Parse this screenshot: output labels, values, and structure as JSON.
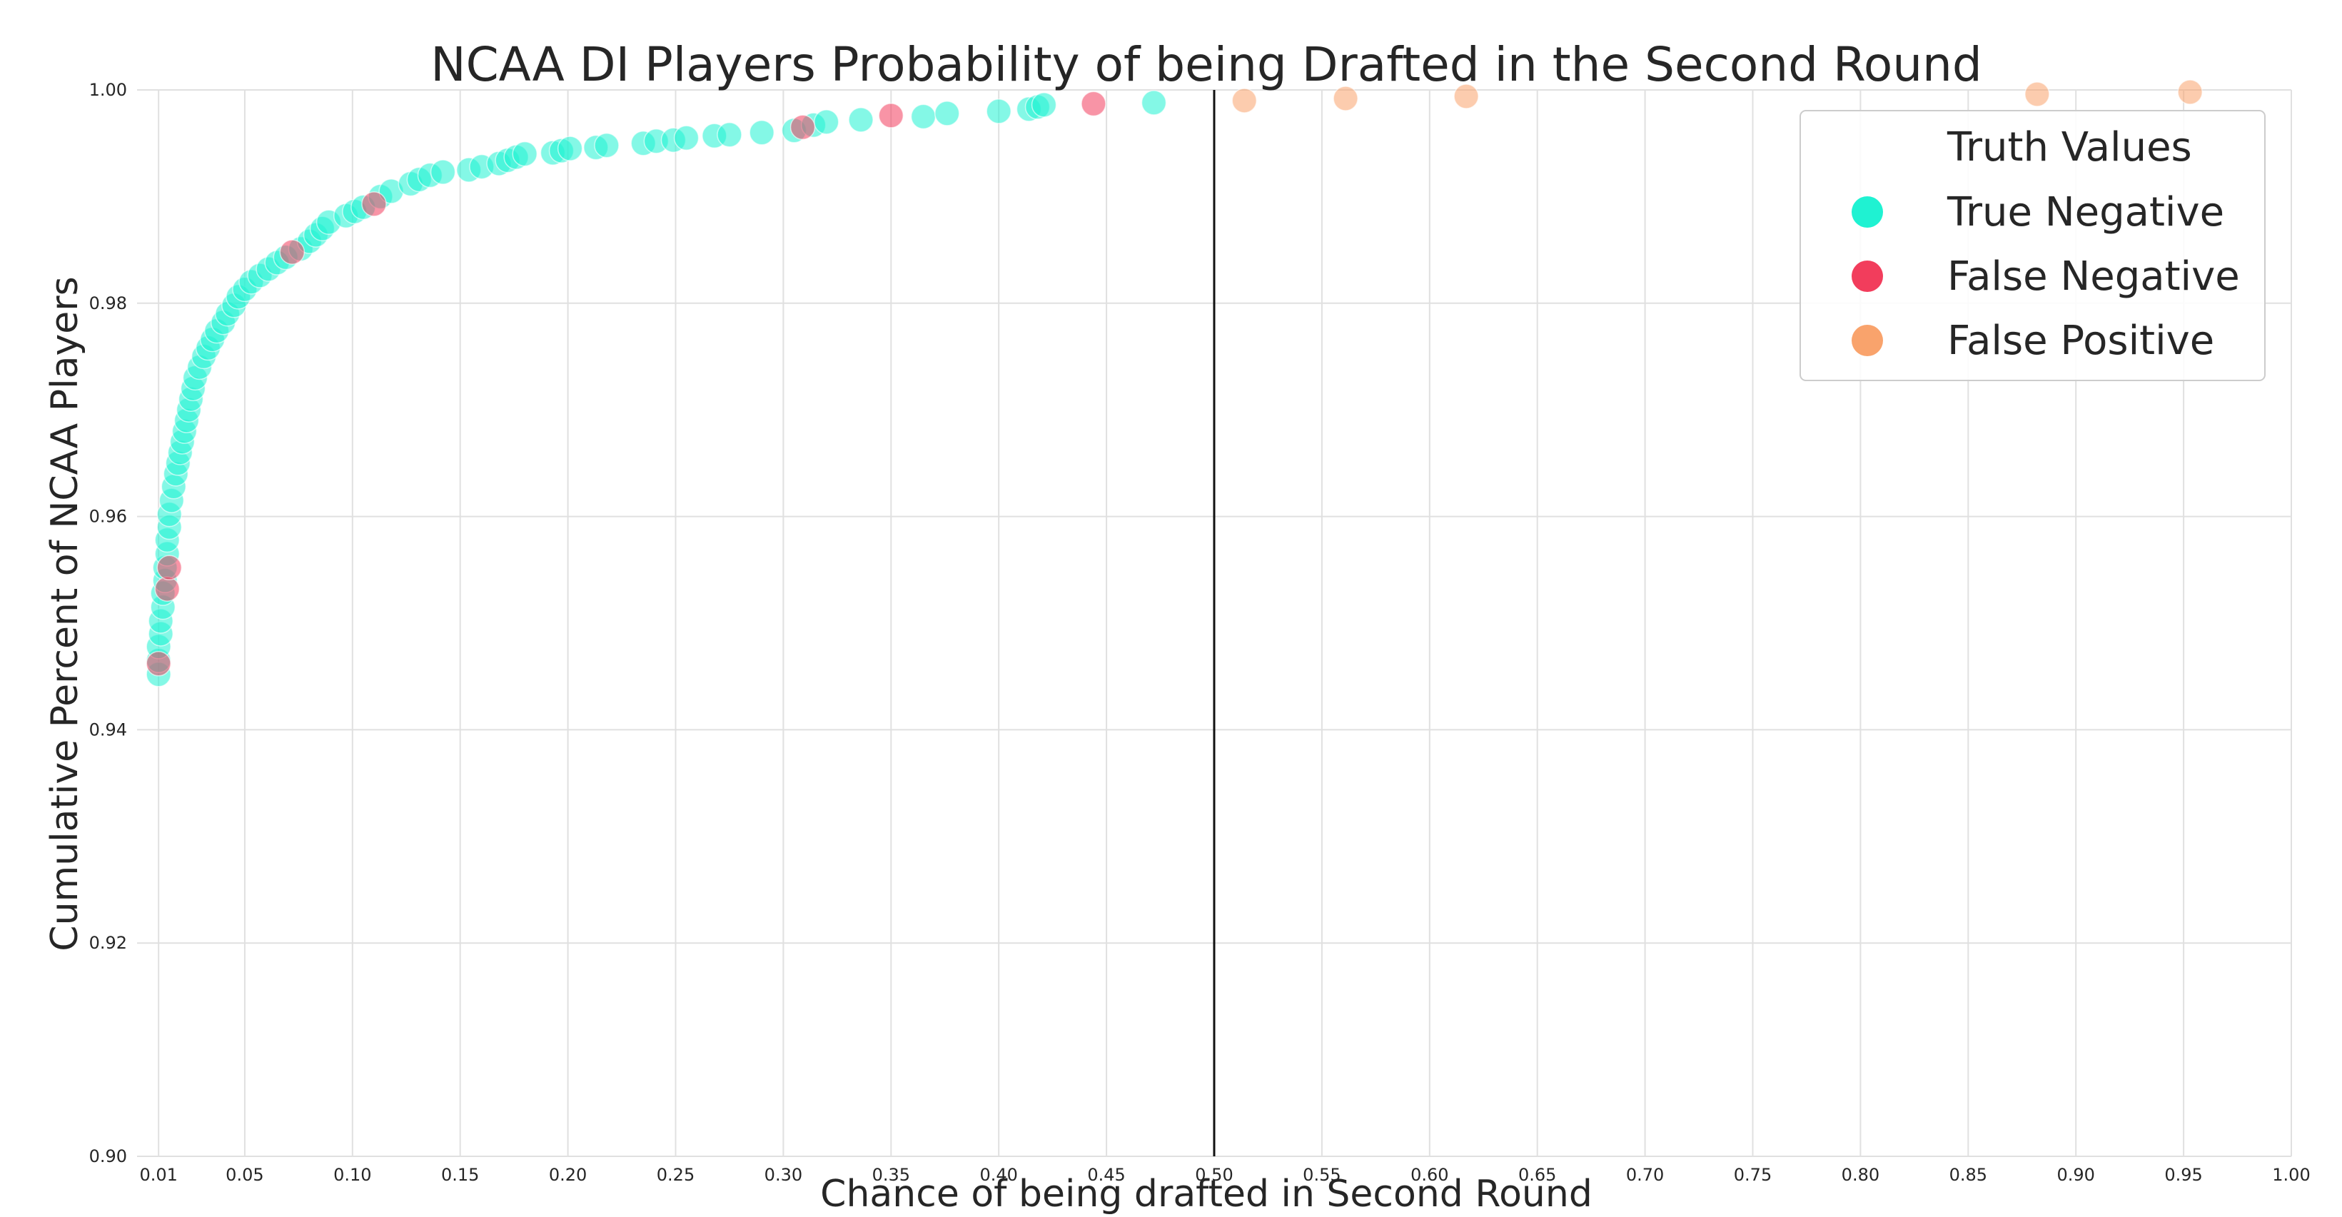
{
  "chart_data": {
    "type": "scatter",
    "title": "NCAA DI Players Probability of being Drafted in the Second Round",
    "xlabel": "Chance of being drafted in Second Round",
    "ylabel": "Cumulative Percent of NCAA Players",
    "xlim": [
      0.0,
      1.0
    ],
    "ylim": [
      0.9,
      1.0
    ],
    "x_ticks": [
      "0.01",
      "0.05",
      "0.10",
      "0.15",
      "0.20",
      "0.25",
      "0.30",
      "0.35",
      "0.40",
      "0.45",
      "0.50",
      "0.55",
      "0.60",
      "0.65",
      "0.70",
      "0.75",
      "0.80",
      "0.85",
      "0.90",
      "0.95",
      "1.00"
    ],
    "x_tick_values": [
      0.01,
      0.05,
      0.1,
      0.15,
      0.2,
      0.25,
      0.3,
      0.35,
      0.4,
      0.45,
      0.5,
      0.55,
      0.6,
      0.65,
      0.7,
      0.75,
      0.8,
      0.85,
      0.9,
      0.95,
      1.0
    ],
    "y_ticks": [
      "0.90",
      "0.92",
      "0.94",
      "0.96",
      "0.98",
      "1.00"
    ],
    "y_tick_values": [
      0.9,
      0.92,
      0.94,
      0.96,
      0.98,
      1.0
    ],
    "grid": true,
    "threshold_line_x": 0.5,
    "legend": {
      "title": "Truth Values",
      "placement": "top-right",
      "entries": [
        "True Negative",
        "False Negative",
        "False Positive"
      ]
    },
    "series": [
      {
        "name": "True Negative",
        "color": "#1ff2d2",
        "points": [
          [
            0.01,
            0.9452
          ],
          [
            0.01,
            0.9465
          ],
          [
            0.01,
            0.9478
          ],
          [
            0.011,
            0.949
          ],
          [
            0.011,
            0.9502
          ],
          [
            0.012,
            0.9515
          ],
          [
            0.012,
            0.9528
          ],
          [
            0.013,
            0.954
          ],
          [
            0.013,
            0.9552
          ],
          [
            0.014,
            0.9565
          ],
          [
            0.014,
            0.9578
          ],
          [
            0.015,
            0.959
          ],
          [
            0.015,
            0.9602
          ],
          [
            0.016,
            0.9615
          ],
          [
            0.017,
            0.9628
          ],
          [
            0.018,
            0.964
          ],
          [
            0.019,
            0.965
          ],
          [
            0.02,
            0.966
          ],
          [
            0.021,
            0.967
          ],
          [
            0.022,
            0.968
          ],
          [
            0.023,
            0.969
          ],
          [
            0.024,
            0.97
          ],
          [
            0.025,
            0.971
          ],
          [
            0.026,
            0.972
          ],
          [
            0.027,
            0.973
          ],
          [
            0.029,
            0.974
          ],
          [
            0.031,
            0.975
          ],
          [
            0.033,
            0.9758
          ],
          [
            0.035,
            0.9766
          ],
          [
            0.037,
            0.9774
          ],
          [
            0.04,
            0.9782
          ],
          [
            0.042,
            0.979
          ],
          [
            0.045,
            0.9798
          ],
          [
            0.047,
            0.9806
          ],
          [
            0.05,
            0.9813
          ],
          [
            0.053,
            0.982
          ],
          [
            0.057,
            0.9826
          ],
          [
            0.061,
            0.9832
          ],
          [
            0.065,
            0.9838
          ],
          [
            0.069,
            0.9843
          ],
          [
            0.076,
            0.9851
          ],
          [
            0.08,
            0.9858
          ],
          [
            0.083,
            0.9864
          ],
          [
            0.086,
            0.987
          ],
          [
            0.089,
            0.9876
          ],
          [
            0.097,
            0.9882
          ],
          [
            0.101,
            0.9886
          ],
          [
            0.105,
            0.989
          ],
          [
            0.113,
            0.99
          ],
          [
            0.118,
            0.9905
          ],
          [
            0.127,
            0.9912
          ],
          [
            0.131,
            0.9916
          ],
          [
            0.136,
            0.992
          ],
          [
            0.142,
            0.9923
          ],
          [
            0.154,
            0.9925
          ],
          [
            0.16,
            0.9928
          ],
          [
            0.168,
            0.9931
          ],
          [
            0.172,
            0.9934
          ],
          [
            0.176,
            0.9937
          ],
          [
            0.18,
            0.994
          ],
          [
            0.193,
            0.9941
          ],
          [
            0.197,
            0.9943
          ],
          [
            0.201,
            0.9945
          ],
          [
            0.213,
            0.9946
          ],
          [
            0.218,
            0.9948
          ],
          [
            0.235,
            0.995
          ],
          [
            0.241,
            0.9952
          ],
          [
            0.249,
            0.9953
          ],
          [
            0.255,
            0.9955
          ],
          [
            0.268,
            0.9957
          ],
          [
            0.275,
            0.9958
          ],
          [
            0.29,
            0.996
          ],
          [
            0.305,
            0.9962
          ],
          [
            0.314,
            0.9967
          ],
          [
            0.32,
            0.997
          ],
          [
            0.336,
            0.9972
          ],
          [
            0.365,
            0.9975
          ],
          [
            0.376,
            0.9978
          ],
          [
            0.4,
            0.998
          ],
          [
            0.414,
            0.9982
          ],
          [
            0.418,
            0.9984
          ],
          [
            0.421,
            0.9986
          ],
          [
            0.472,
            0.9988
          ]
        ]
      },
      {
        "name": "False Negative",
        "color": "#f23d5c",
        "points": [
          [
            0.01,
            0.9462
          ],
          [
            0.014,
            0.9532
          ],
          [
            0.015,
            0.9552
          ],
          [
            0.072,
            0.9848
          ],
          [
            0.11,
            0.9893
          ],
          [
            0.309,
            0.9965
          ],
          [
            0.35,
            0.9976
          ],
          [
            0.444,
            0.9987
          ]
        ]
      },
      {
        "name": "False Positive",
        "color": "#f9a36c",
        "points": [
          [
            0.514,
            0.999
          ],
          [
            0.561,
            0.9992
          ],
          [
            0.617,
            0.9994
          ],
          [
            0.882,
            0.9996
          ],
          [
            0.953,
            0.9998
          ]
        ]
      }
    ]
  }
}
